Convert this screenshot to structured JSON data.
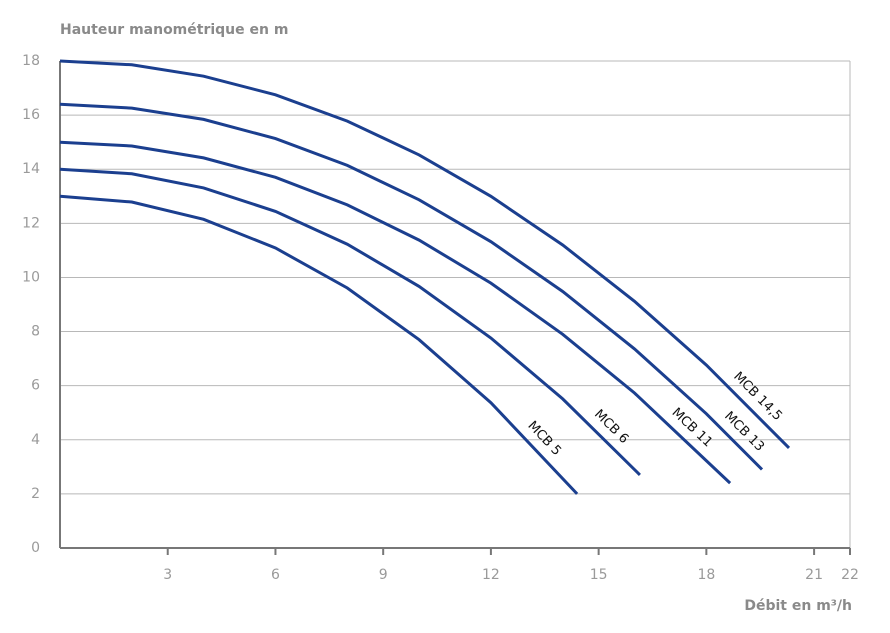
{
  "chart_data": {
    "type": "line",
    "y_label": "Hauteur manométrique en m",
    "x_label": "Débit en m³/h",
    "xlim": [
      0,
      22
    ],
    "ylim": [
      0,
      18
    ],
    "xticks": [
      3,
      6,
      9,
      12,
      15,
      18,
      21,
      22
    ],
    "yticks": [
      0,
      2,
      4,
      6,
      8,
      10,
      12,
      14,
      16,
      18
    ],
    "grid": true,
    "series": [
      {
        "name": "MCB 14,5",
        "color": "#1b3f8f",
        "x": [
          0,
          2,
          4,
          6,
          8,
          10,
          12,
          14,
          16,
          18,
          20.3
        ],
        "values": [
          18,
          17.86,
          17.44,
          16.75,
          15.78,
          14.53,
          13.0,
          11.2,
          9.12,
          6.76,
          3.7
        ]
      },
      {
        "name": "MCB 13",
        "color": "#1b3f8f",
        "x": [
          0,
          2,
          4,
          6,
          8,
          10,
          12,
          14,
          16,
          18,
          19.55
        ],
        "values": [
          16.4,
          16.26,
          15.84,
          15.13,
          14.14,
          12.87,
          11.32,
          9.48,
          7.36,
          4.96,
          2.9
        ]
      },
      {
        "name": "MCB 11",
        "color": "#1b3f8f",
        "x": [
          0,
          2,
          4,
          6,
          8,
          10,
          12,
          14,
          16,
          18.66
        ],
        "values": [
          15,
          14.86,
          14.42,
          13.7,
          12.68,
          11.38,
          9.79,
          7.9,
          5.73,
          2.4
        ]
      },
      {
        "name": "MCB 6",
        "color": "#1b3f8f",
        "x": [
          0,
          2,
          4,
          6,
          8,
          10,
          12,
          14,
          16.15
        ],
        "values": [
          14,
          13.83,
          13.31,
          12.44,
          11.23,
          9.67,
          7.76,
          5.51,
          2.7
        ]
      },
      {
        "name": "MCB 5",
        "color": "#1b3f8f",
        "x": [
          0,
          2,
          4,
          6,
          8,
          10,
          12,
          14.4
        ],
        "values": [
          13,
          12.79,
          12.15,
          11.09,
          9.61,
          7.7,
          5.37,
          2.0
        ]
      }
    ]
  }
}
